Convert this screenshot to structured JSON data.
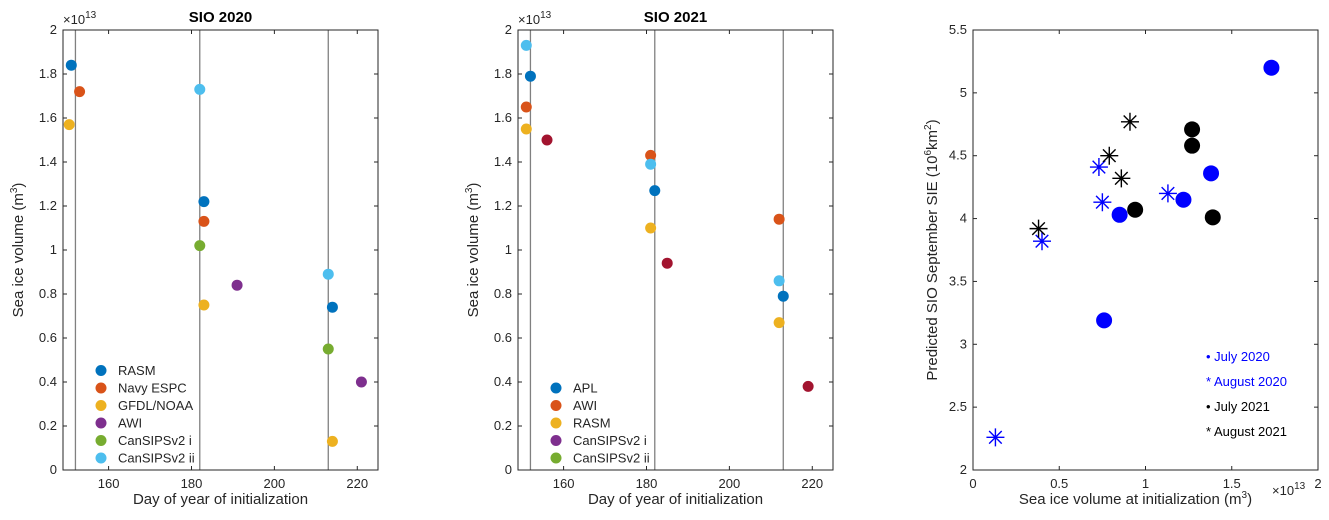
{
  "chart_data": [
    {
      "type": "scatter",
      "title": "SIO 2020",
      "xlabel": "Day of year of initialization",
      "ylabel": "Sea ice volume (m",
      "ylabel_sup": "3",
      "ylabel_close": ")",
      "y_exponent": "×10",
      "y_exponent_sup": "13",
      "xlim": [
        149,
        225
      ],
      "ylim": [
        0,
        2
      ],
      "xticks": [
        "160",
        "180",
        "200",
        "220"
      ],
      "xtick_values": [
        160,
        180,
        200,
        220
      ],
      "yticks": [
        "0",
        "0.2",
        "0.4",
        "0.6",
        "0.8",
        "1",
        "1.2",
        "1.4",
        "1.6",
        "1.8",
        "2"
      ],
      "ytick_values": [
        0,
        0.2,
        0.4,
        0.6,
        0.8,
        1,
        1.2,
        1.4,
        1.6,
        1.8,
        2
      ],
      "vlines": [
        152,
        182,
        213
      ],
      "legend_position": "bottom-left",
      "series": [
        {
          "name": "RASM",
          "color": "#0072BD",
          "points": [
            [
              151,
              1.84
            ],
            [
              183,
              1.22
            ],
            [
              214,
              0.74
            ]
          ]
        },
        {
          "name": "Navy ESPC",
          "color": "#D95319",
          "points": [
            [
              153,
              1.72
            ],
            [
              183,
              1.13
            ]
          ]
        },
        {
          "name": "GFDL/NOAA",
          "color": "#EDB120",
          "points": [
            [
              150.5,
              1.57
            ],
            [
              183,
              0.75
            ],
            [
              214,
              0.13
            ]
          ]
        },
        {
          "name": "AWI",
          "color": "#7E2F8E",
          "points": [
            [
              191,
              0.84
            ],
            [
              221,
              0.4
            ]
          ]
        },
        {
          "name": "CanSIPSv2 i",
          "color": "#77AC30",
          "points": [
            [
              182,
              1.02
            ],
            [
              213,
              0.55
            ]
          ]
        },
        {
          "name": "CanSIPSv2 ii",
          "color": "#4DBEEE",
          "points": [
            [
              182,
              1.73
            ],
            [
              213,
              0.89
            ]
          ]
        }
      ]
    },
    {
      "type": "scatter",
      "title": "SIO 2021",
      "xlabel": "Day of year of initialization",
      "ylabel": "Sea ice volume (m",
      "ylabel_sup": "3",
      "ylabel_close": ")",
      "y_exponent": "×10",
      "y_exponent_sup": "13",
      "xlim": [
        149,
        225
      ],
      "ylim": [
        0,
        2
      ],
      "xticks": [
        "160",
        "180",
        "200",
        "220"
      ],
      "xtick_values": [
        160,
        180,
        200,
        220
      ],
      "yticks": [
        "0",
        "0.2",
        "0.4",
        "0.6",
        "0.8",
        "1",
        "1.2",
        "1.4",
        "1.6",
        "1.8",
        "2"
      ],
      "ytick_values": [
        0,
        0.2,
        0.4,
        0.6,
        0.8,
        1,
        1.2,
        1.4,
        1.6,
        1.8,
        2
      ],
      "vlines": [
        152,
        182,
        213
      ],
      "legend_position": "bottom-left",
      "series": [
        {
          "name": "APL",
          "color": "#0072BD",
          "points": [
            [
              152,
              1.79
            ],
            [
              182,
              1.27
            ],
            [
              213,
              0.79
            ]
          ]
        },
        {
          "name": "AWI",
          "color": "#D95319",
          "points": [
            [
              151,
              1.65
            ],
            [
              181,
              1.43
            ],
            [
              212,
              1.14
            ]
          ]
        },
        {
          "name": "RASM",
          "color": "#EDB120",
          "points": [
            [
              151,
              1.55
            ],
            [
              181,
              1.1
            ],
            [
              212,
              0.67
            ]
          ]
        },
        {
          "name": "CanSIPSv2 i",
          "color": "#7E2F8E",
          "points": []
        },
        {
          "name": "CanSIPSv2 ii",
          "color": "#77AC30",
          "points": []
        },
        {
          "name": "",
          "color": "#A2142F",
          "points": [
            [
              156,
              1.5
            ],
            [
              185,
              0.94
            ],
            [
              219,
              0.38
            ]
          ]
        },
        {
          "name": "",
          "color": "#4DBEEE",
          "points": [
            [
              151,
              1.93
            ],
            [
              181,
              1.39
            ],
            [
              212,
              0.86
            ]
          ]
        }
      ]
    },
    {
      "type": "scatter",
      "title": "",
      "xlabel": "Sea ice volume at initialization (m",
      "xlabel_sup": "3",
      "xlabel_close": ")",
      "x_exponent": "×10",
      "x_exponent_sup": "13",
      "ylabel": "Predicted SIO September SIE (10",
      "ylabel_sup": "6",
      "ylabel_mid": "km",
      "ylabel_sup2": "2",
      "ylabel_close": ")",
      "xlim": [
        0,
        2
      ],
      "ylim": [
        2,
        5.5
      ],
      "xticks": [
        "0",
        "0.5",
        "1",
        "1.5",
        "2"
      ],
      "xtick_values": [
        0,
        0.5,
        1,
        1.5,
        2
      ],
      "yticks": [
        "2",
        "2.5",
        "3",
        "3.5",
        "4",
        "4.5",
        "5",
        "5.5"
      ],
      "ytick_values": [
        2,
        2.5,
        3,
        3.5,
        4,
        4.5,
        5,
        5.5
      ],
      "legend_position": "bottom-right",
      "series": [
        {
          "name": "• July 2020",
          "color": "#0000FF",
          "marker": "dot",
          "points": [
            [
              0.76,
              3.19
            ],
            [
              0.85,
              4.03
            ],
            [
              1.22,
              4.15
            ],
            [
              1.38,
              4.36
            ],
            [
              1.73,
              5.2
            ]
          ]
        },
        {
          "name": "* August 2020",
          "color": "#0000FF",
          "marker": "star",
          "points": [
            [
              0.13,
              2.26
            ],
            [
              0.4,
              3.82
            ],
            [
              0.73,
              4.41
            ],
            [
              0.75,
              4.13
            ],
            [
              1.13,
              4.2
            ]
          ]
        },
        {
          "name": "• July 2021",
          "color": "#000000",
          "marker": "dot",
          "points": [
            [
              0.94,
              4.07
            ],
            [
              1.27,
              4.58
            ],
            [
              1.27,
              4.71
            ],
            [
              1.39,
              4.01
            ]
          ]
        },
        {
          "name": "* August 2021",
          "color": "#000000",
          "marker": "star",
          "points": [
            [
              0.38,
              3.92
            ],
            [
              0.79,
              4.5
            ],
            [
              0.86,
              4.32
            ],
            [
              0.91,
              4.77
            ]
          ]
        }
      ]
    }
  ]
}
